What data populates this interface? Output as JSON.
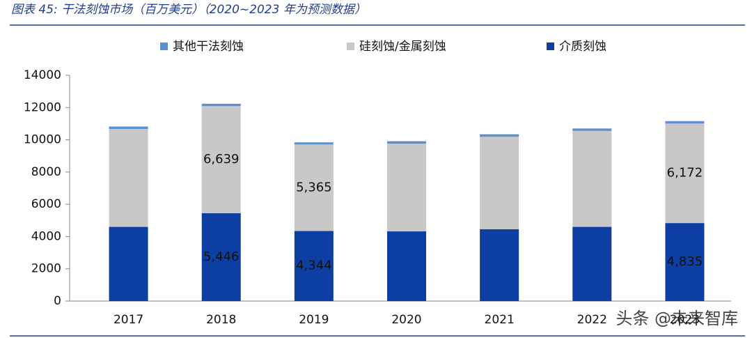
{
  "chart_data": {
    "type": "stacked-bar",
    "title": "图表 45:  干法刻蚀市场（百万美元）（2020~2023 年为预测数据）",
    "categories": [
      "2017",
      "2018",
      "2019",
      "2020",
      "2021",
      "2022",
      "2023"
    ],
    "series": [
      {
        "name": "其他干法刻蚀",
        "color": "#5b8fd0",
        "values": [
          150,
          150,
          130,
          150,
          150,
          150,
          150
        ]
      },
      {
        "name": "硅刻蚀/金属刻蚀",
        "color": "#c8c8c8",
        "values": [
          6070,
          6639,
          5365,
          5440,
          5740,
          5950,
          6172
        ],
        "value_labels": [
          null,
          "6,639",
          "5,365",
          null,
          null,
          null,
          "6,172"
        ]
      },
      {
        "name": "介质刻蚀",
        "color": "#0d3fa3",
        "values": [
          4600,
          5446,
          4344,
          4320,
          4450,
          4600,
          4835
        ],
        "value_labels": [
          null,
          "5,446",
          "4,344",
          null,
          null,
          null,
          "4,835"
        ]
      }
    ],
    "ylim": [
      0,
      14000
    ],
    "yticks": [
      0,
      2000,
      4000,
      6000,
      8000,
      10000,
      12000,
      14000
    ],
    "watermark": "头条 @未来智库"
  }
}
